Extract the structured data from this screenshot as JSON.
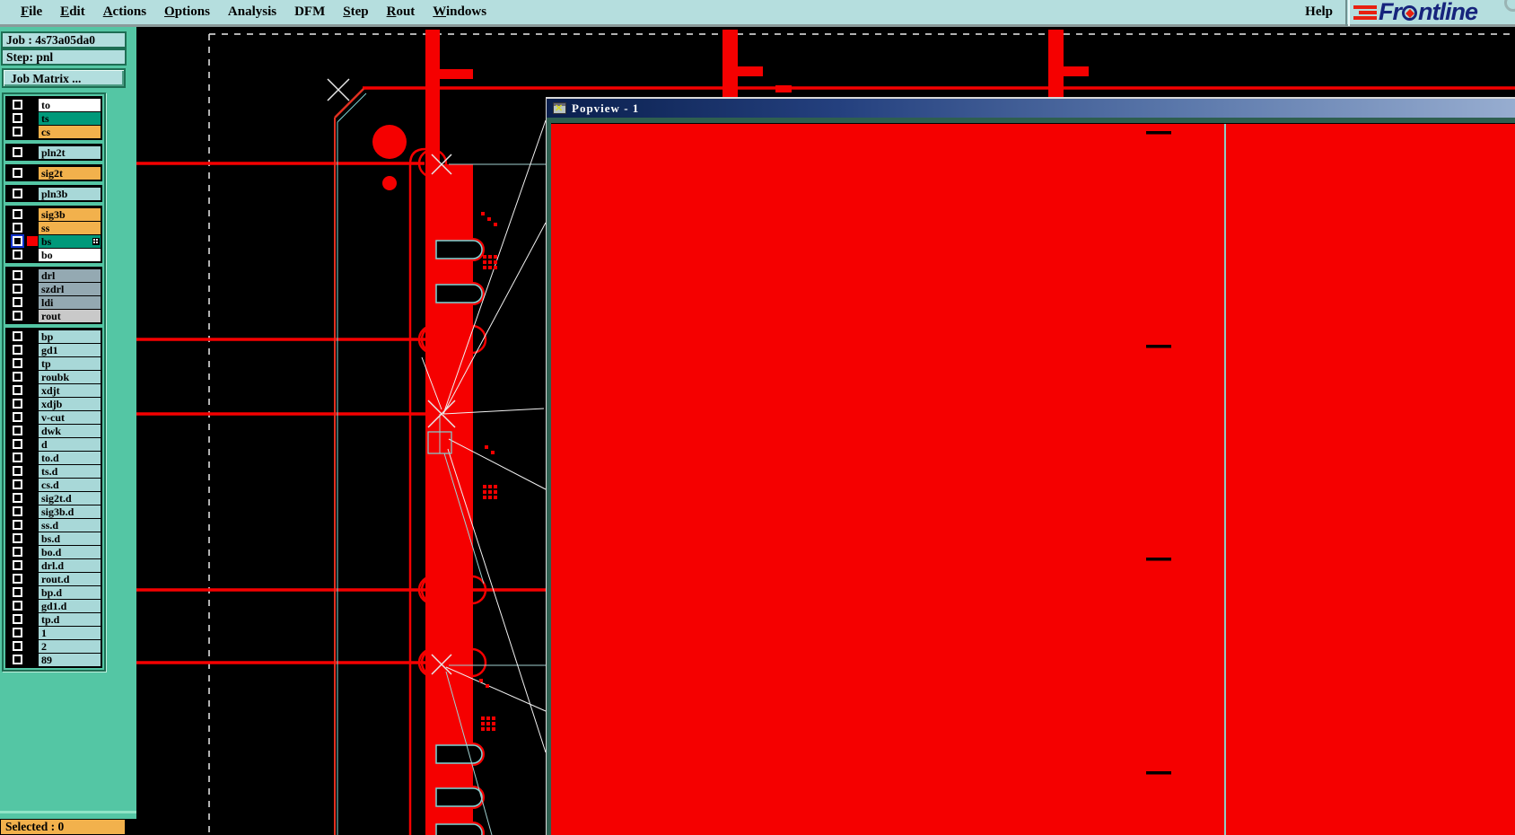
{
  "menu": {
    "items": [
      {
        "label": "File",
        "u": 0
      },
      {
        "label": "Edit",
        "u": 0
      },
      {
        "label": "Actions",
        "u": 0
      },
      {
        "label": "Options",
        "u": 0
      },
      {
        "label": "Analysis",
        "u": -1
      },
      {
        "label": "DFM",
        "u": -1
      },
      {
        "label": "Step",
        "u": 0
      },
      {
        "label": "Rout",
        "u": 0
      },
      {
        "label": "Windows",
        "u": 0
      }
    ],
    "help_label": "Help"
  },
  "logo": {
    "brand": "Frontline",
    "part1": "Fr",
    "part2": "ntline"
  },
  "sidebar": {
    "job_label": "Job : 4s73a05da0",
    "step_label": "Step: pnl",
    "matrix_button": "Job Matrix ...",
    "layer_groups": [
      [
        {
          "name": "to",
          "bg": "#ffffff"
        },
        {
          "name": "ts",
          "bg": "#00997a"
        },
        {
          "name": "cs",
          "bg": "#f2b14c"
        }
      ],
      [
        {
          "name": "pln2t",
          "bg": "#a8d8d8"
        }
      ],
      [
        {
          "name": "sig2t",
          "bg": "#f2b14c"
        }
      ],
      [
        {
          "name": "pln3b",
          "bg": "#a8d8d8"
        }
      ],
      [
        {
          "name": "sig3b",
          "bg": "#f2b14c"
        },
        {
          "name": "ss",
          "bg": "#f2b14c"
        },
        {
          "name": "bs",
          "bg": "#00997a",
          "selected": true,
          "swatch": "#f50000"
        },
        {
          "name": "bo",
          "bg": "#ffffff"
        }
      ],
      [
        {
          "name": "drl",
          "bg": "#94a9b2"
        },
        {
          "name": "szdrl",
          "bg": "#94a9b2"
        },
        {
          "name": "ldi",
          "bg": "#94a9b2"
        },
        {
          "name": "rout",
          "bg": "#c9c9c9"
        }
      ],
      [
        {
          "name": "bp",
          "bg": "#a8d8d8"
        },
        {
          "name": "gd1",
          "bg": "#a8d8d8"
        },
        {
          "name": "tp",
          "bg": "#a8d8d8"
        },
        {
          "name": "roubk",
          "bg": "#a8d8d8"
        },
        {
          "name": "xdjt",
          "bg": "#a8d8d8"
        },
        {
          "name": "xdjb",
          "bg": "#a8d8d8"
        },
        {
          "name": "v-cut",
          "bg": "#a8d8d8"
        },
        {
          "name": "dwk",
          "bg": "#a8d8d8"
        },
        {
          "name": "d",
          "bg": "#a8d8d8"
        },
        {
          "name": "to.d",
          "bg": "#a8d8d8"
        },
        {
          "name": "ts.d",
          "bg": "#a8d8d8"
        },
        {
          "name": "cs.d",
          "bg": "#a8d8d8"
        },
        {
          "name": "sig2t.d",
          "bg": "#a8d8d8"
        },
        {
          "name": "sig3b.d",
          "bg": "#a8d8d8"
        },
        {
          "name": "ss.d",
          "bg": "#a8d8d8"
        },
        {
          "name": "bs.d",
          "bg": "#a8d8d8"
        },
        {
          "name": "bo.d",
          "bg": "#a8d8d8"
        },
        {
          "name": "drl.d",
          "bg": "#a8d8d8"
        },
        {
          "name": "rout.d",
          "bg": "#a8d8d8"
        },
        {
          "name": "bp.d",
          "bg": "#a8d8d8"
        },
        {
          "name": "gd1.d",
          "bg": "#a8d8d8"
        },
        {
          "name": "tp.d",
          "bg": "#a8d8d8"
        },
        {
          "name": "1",
          "bg": "#a8d8d8"
        },
        {
          "name": "2",
          "bg": "#a8d8d8"
        },
        {
          "name": "89",
          "bg": "#a8d8d8"
        }
      ]
    ],
    "status": "Selected : 0"
  },
  "popview": {
    "title": "Popview - 1"
  },
  "colors": {
    "menubar_bg": "#b5dede",
    "sidebar_bg": "#54c6a4",
    "copper_red": "#f50000",
    "selection_cyan": "#7fd4d4",
    "status_bg": "#f2b14c",
    "titlebar_blue": "#0a1f4d"
  }
}
